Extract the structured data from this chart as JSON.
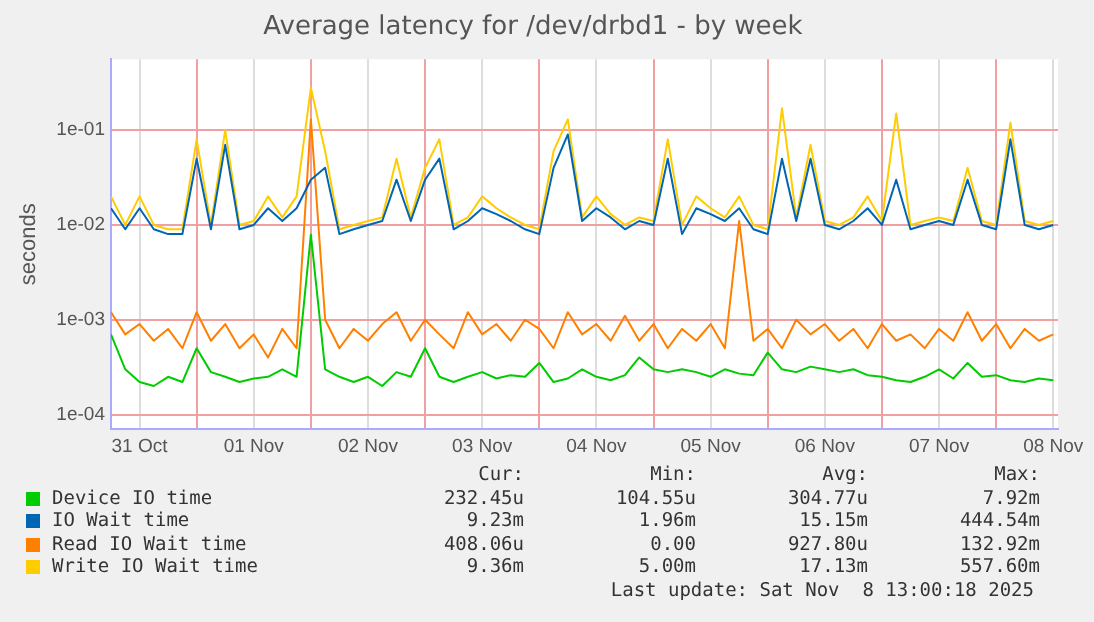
{
  "chart_data": {
    "type": "line",
    "title": "Average latency for /dev/drbd1 - by week",
    "ylabel": "seconds",
    "log": "y",
    "grid": true,
    "legend": "bottom",
    "marker": "none",
    "line_style": "solid",
    "xlim": [
      "2025-10-31T06:00",
      "2025-11-08T13:00"
    ],
    "xticks": [
      {
        "value": "2025-10-31T12:00",
        "label": "31 Oct"
      },
      {
        "value": "2025-11-01T00:00",
        "label": null
      },
      {
        "value": "2025-11-01T12:00",
        "label": "01 Nov"
      },
      {
        "value": "2025-11-02T00:00",
        "label": null
      },
      {
        "value": "2025-11-02T12:00",
        "label": "02 Nov"
      },
      {
        "value": "2025-11-03T00:00",
        "label": null
      },
      {
        "value": "2025-11-03T12:00",
        "label": "03 Nov"
      },
      {
        "value": "2025-11-04T00:00",
        "label": null
      },
      {
        "value": "2025-11-04T12:00",
        "label": "04 Nov"
      },
      {
        "value": "2025-11-05T00:00",
        "label": null
      },
      {
        "value": "2025-11-05T12:00",
        "label": "05 Nov"
      },
      {
        "value": "2025-11-06T00:00",
        "label": null
      },
      {
        "value": "2025-11-06T12:00",
        "label": "06 Nov"
      },
      {
        "value": "2025-11-07T00:00",
        "label": null
      },
      {
        "value": "2025-11-07T12:00",
        "label": "07 Nov"
      },
      {
        "value": "2025-11-08T00:00",
        "label": null
      },
      {
        "value": "2025-11-08T12:00",
        "label": "08 Nov"
      }
    ],
    "ylim": [
      7e-05,
      0.56
    ],
    "yticks": [
      {
        "value": 0.0001,
        "label": "1e-04"
      },
      {
        "value": 0.001,
        "label": "1e-03"
      },
      {
        "value": 0.01,
        "label": "1e-02"
      },
      {
        "value": 0.1,
        "label": "1e-01"
      }
    ],
    "x": [
      "2025-10-31T06:00",
      "2025-10-31T09:00",
      "2025-10-31T12:00",
      "2025-10-31T15:00",
      "2025-10-31T18:00",
      "2025-10-31T21:00",
      "2025-11-01T00:00",
      "2025-11-01T03:00",
      "2025-11-01T06:00",
      "2025-11-01T09:00",
      "2025-11-01T12:00",
      "2025-11-01T15:00",
      "2025-11-01T18:00",
      "2025-11-01T21:00",
      "2025-11-02T00:00",
      "2025-11-02T03:00",
      "2025-11-02T06:00",
      "2025-11-02T09:00",
      "2025-11-02T12:00",
      "2025-11-02T15:00",
      "2025-11-02T18:00",
      "2025-11-02T21:00",
      "2025-11-03T00:00",
      "2025-11-03T03:00",
      "2025-11-03T06:00",
      "2025-11-03T09:00",
      "2025-11-03T12:00",
      "2025-11-03T15:00",
      "2025-11-03T18:00",
      "2025-11-03T21:00",
      "2025-11-04T00:00",
      "2025-11-04T03:00",
      "2025-11-04T06:00",
      "2025-11-04T09:00",
      "2025-11-04T12:00",
      "2025-11-04T15:00",
      "2025-11-04T18:00",
      "2025-11-04T21:00",
      "2025-11-05T00:00",
      "2025-11-05T03:00",
      "2025-11-05T06:00",
      "2025-11-05T09:00",
      "2025-11-05T12:00",
      "2025-11-05T15:00",
      "2025-11-05T18:00",
      "2025-11-05T21:00",
      "2025-11-06T00:00",
      "2025-11-06T03:00",
      "2025-11-06T06:00",
      "2025-11-06T09:00",
      "2025-11-06T12:00",
      "2025-11-06T15:00",
      "2025-11-06T18:00",
      "2025-11-06T21:00",
      "2025-11-07T00:00",
      "2025-11-07T03:00",
      "2025-11-07T06:00",
      "2025-11-07T09:00",
      "2025-11-07T12:00",
      "2025-11-07T15:00",
      "2025-11-07T18:00",
      "2025-11-07T21:00",
      "2025-11-08T00:00",
      "2025-11-08T03:00",
      "2025-11-08T06:00",
      "2025-11-08T09:00",
      "2025-11-08T12:00"
    ],
    "series": [
      {
        "name": "Device IO time",
        "color": "#00cc00",
        "values": [
          0.0007,
          0.0003,
          0.00022,
          0.0002,
          0.00025,
          0.00022,
          0.0005,
          0.00028,
          0.00025,
          0.00022,
          0.00024,
          0.00025,
          0.0003,
          0.00025,
          0.0079,
          0.0003,
          0.00025,
          0.00022,
          0.00025,
          0.0002,
          0.00028,
          0.00025,
          0.0005,
          0.00025,
          0.00022,
          0.00025,
          0.00028,
          0.00024,
          0.00026,
          0.00025,
          0.00035,
          0.00022,
          0.00024,
          0.0003,
          0.00025,
          0.00023,
          0.00026,
          0.0004,
          0.0003,
          0.00028,
          0.0003,
          0.00028,
          0.00025,
          0.0003,
          0.00027,
          0.00026,
          0.00045,
          0.0003,
          0.00028,
          0.00032,
          0.0003,
          0.00028,
          0.0003,
          0.00026,
          0.00025,
          0.00023,
          0.00022,
          0.00025,
          0.0003,
          0.00024,
          0.00035,
          0.00025,
          0.00026,
          0.00023,
          0.00022,
          0.00024,
          0.00023
        ]
      },
      {
        "name": "IO Wait time",
        "color": "#0066b3",
        "values": [
          0.015,
          0.009,
          0.015,
          0.009,
          0.008,
          0.008,
          0.05,
          0.009,
          0.07,
          0.009,
          0.01,
          0.015,
          0.011,
          0.015,
          0.03,
          0.04,
          0.008,
          0.009,
          0.01,
          0.011,
          0.03,
          0.011,
          0.03,
          0.05,
          0.009,
          0.011,
          0.015,
          0.013,
          0.011,
          0.009,
          0.008,
          0.04,
          0.09,
          0.011,
          0.015,
          0.012,
          0.009,
          0.011,
          0.01,
          0.05,
          0.008,
          0.015,
          0.013,
          0.011,
          0.015,
          0.009,
          0.008,
          0.05,
          0.011,
          0.05,
          0.01,
          0.009,
          0.011,
          0.015,
          0.01,
          0.03,
          0.009,
          0.01,
          0.011,
          0.01,
          0.03,
          0.01,
          0.009,
          0.08,
          0.01,
          0.009,
          0.01
        ]
      },
      {
        "name": "Read IO Wait time",
        "color": "#ff8000",
        "values": [
          0.0012,
          0.0007,
          0.0009,
          0.0006,
          0.0008,
          0.0005,
          0.0012,
          0.0006,
          0.0009,
          0.0005,
          0.0007,
          0.0004,
          0.0008,
          0.0005,
          0.13,
          0.001,
          0.0005,
          0.0008,
          0.0006,
          0.0009,
          0.0012,
          0.0006,
          0.001,
          0.0007,
          0.0005,
          0.0012,
          0.0007,
          0.0009,
          0.0006,
          0.001,
          0.0008,
          0.0005,
          0.0012,
          0.0007,
          0.0009,
          0.0006,
          0.0011,
          0.0006,
          0.0009,
          0.0005,
          0.0008,
          0.0006,
          0.0009,
          0.0005,
          0.011,
          0.0006,
          0.0008,
          0.0005,
          0.001,
          0.0007,
          0.0009,
          0.0006,
          0.0008,
          0.0005,
          0.0009,
          0.0006,
          0.0007,
          0.0005,
          0.0008,
          0.0006,
          0.0012,
          0.0006,
          0.0009,
          0.0005,
          0.0008,
          0.0006,
          0.0007
        ]
      },
      {
        "name": "Write IO Wait time",
        "color": "#ffcc00",
        "values": [
          0.02,
          0.01,
          0.02,
          0.01,
          0.009,
          0.009,
          0.08,
          0.01,
          0.1,
          0.01,
          0.011,
          0.02,
          0.012,
          0.02,
          0.28,
          0.06,
          0.009,
          0.01,
          0.011,
          0.012,
          0.05,
          0.012,
          0.04,
          0.08,
          0.01,
          0.012,
          0.02,
          0.015,
          0.012,
          0.01,
          0.009,
          0.06,
          0.13,
          0.012,
          0.02,
          0.013,
          0.01,
          0.012,
          0.011,
          0.08,
          0.01,
          0.02,
          0.015,
          0.012,
          0.02,
          0.01,
          0.009,
          0.17,
          0.012,
          0.07,
          0.011,
          0.01,
          0.012,
          0.02,
          0.011,
          0.15,
          0.01,
          0.011,
          0.012,
          0.011,
          0.04,
          0.011,
          0.01,
          0.12,
          0.011,
          0.01,
          0.011
        ]
      }
    ],
    "annotations": [
      "Cur:",
      "Min:",
      "Avg:",
      "Max:",
      "232.45u",
      "104.55u",
      "304.77u",
      "7.92m",
      "9.23m",
      "1.96m",
      "15.15m",
      "444.54m",
      "408.06u",
      "0.00",
      "927.80u",
      "132.92m",
      "9.36m",
      "5.00m",
      "17.13m",
      "557.60m",
      "Last update: Sat Nov  8 13:00:18 2025"
    ]
  }
}
